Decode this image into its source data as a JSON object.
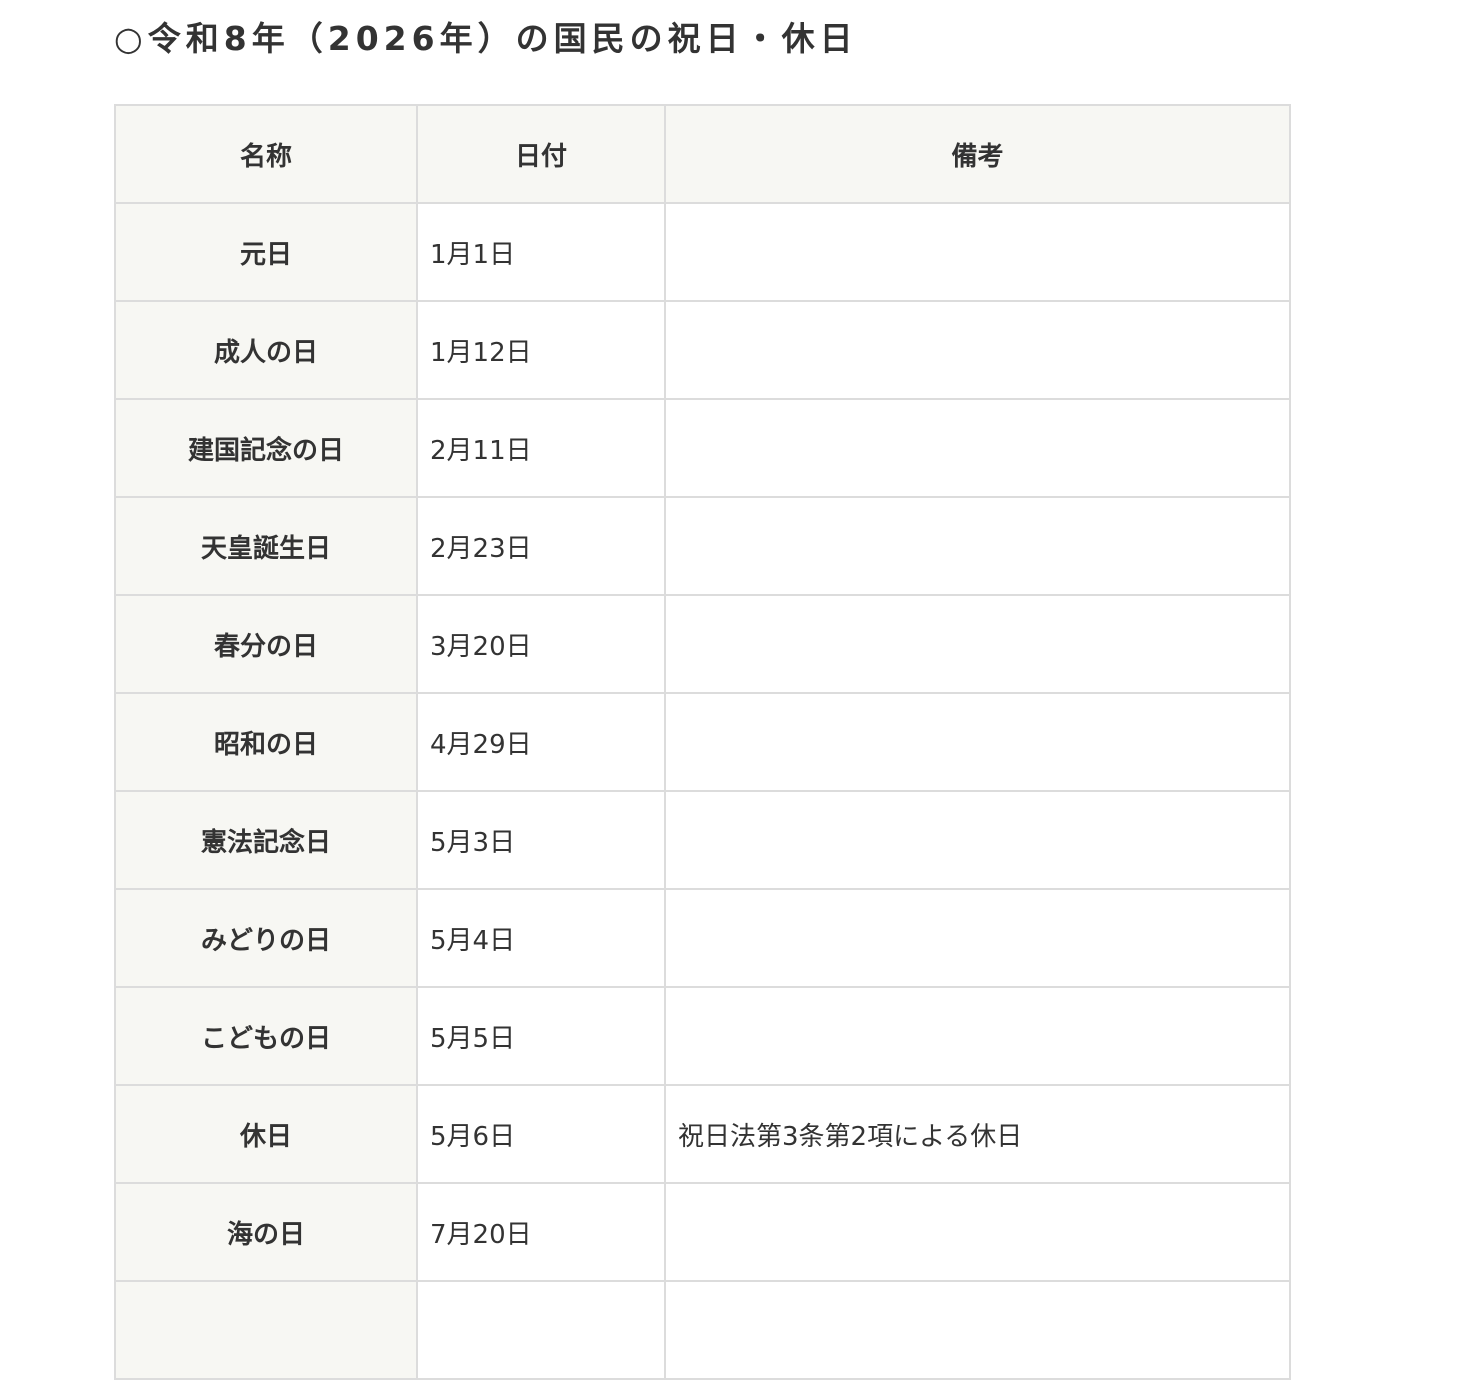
{
  "title": "○令和8年（2026年）の国民の祝日・休日",
  "table": {
    "headers": [
      "名称",
      "日付",
      "備考"
    ],
    "rows": [
      {
        "name": "元日",
        "date": "1月1日",
        "note": ""
      },
      {
        "name": "成人の日",
        "date": "1月12日",
        "note": ""
      },
      {
        "name": "建国記念の日",
        "date": "2月11日",
        "note": ""
      },
      {
        "name": "天皇誕生日",
        "date": "2月23日",
        "note": ""
      },
      {
        "name": "春分の日",
        "date": "3月20日",
        "note": ""
      },
      {
        "name": "昭和の日",
        "date": "4月29日",
        "note": ""
      },
      {
        "name": "憲法記念日",
        "date": "5月3日",
        "note": ""
      },
      {
        "name": "みどりの日",
        "date": "5月4日",
        "note": ""
      },
      {
        "name": "こどもの日",
        "date": "5月5日",
        "note": ""
      },
      {
        "name": "休日",
        "date": "5月6日",
        "note": "祝日法第3条第2項による休日"
      },
      {
        "name": "海の日",
        "date": "7月20日",
        "note": ""
      },
      {
        "name": "",
        "date": "",
        "note": ""
      }
    ]
  }
}
